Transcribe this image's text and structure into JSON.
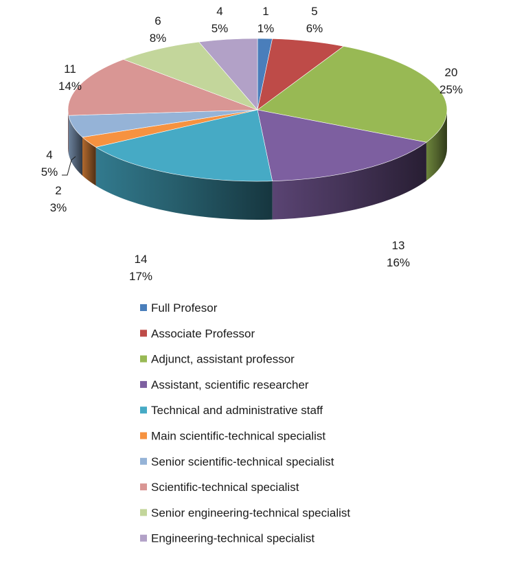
{
  "chart_data": {
    "type": "pie",
    "title": "",
    "legend_position": "bottom",
    "slices": [
      {
        "label": "Full Profesor",
        "value": 1,
        "percent": "1%",
        "color": "#4a7ebb"
      },
      {
        "label": "Associate Professor",
        "value": 5,
        "percent": "6%",
        "color": "#be4b48"
      },
      {
        "label": "Adjunct, assistant professor",
        "value": 20,
        "percent": "25%",
        "color": "#98b954"
      },
      {
        "label": "Assistant, scientific researcher",
        "value": 13,
        "percent": "16%",
        "color": "#7d5fa0"
      },
      {
        "label": "Technical and administrative staff",
        "value": 14,
        "percent": "17%",
        "color": "#46aac5"
      },
      {
        "label": "Main scientific-technical specialist",
        "value": 2,
        "percent": "3%",
        "color": "#f69240"
      },
      {
        "label": "Senior scientific-technical specialist",
        "value": 4,
        "percent": "5%",
        "color": "#95b3d7"
      },
      {
        "label": "Scientific-technical specialist",
        "value": 11,
        "percent": "14%",
        "color": "#d99694"
      },
      {
        "label": "Senior engineering-technical specialist",
        "value": 6,
        "percent": "8%",
        "color": "#c3d69b"
      },
      {
        "label": "Engineering-technical specialist",
        "value": 4,
        "percent": "5%",
        "color": "#b2a1c7"
      }
    ]
  }
}
